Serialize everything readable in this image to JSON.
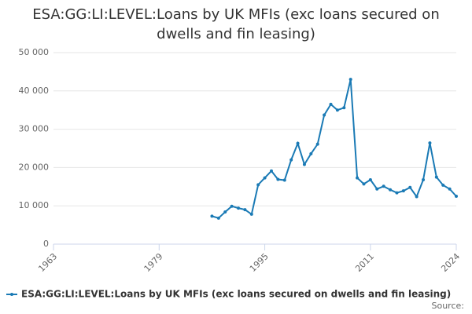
{
  "chart_data": {
    "type": "line",
    "title": "ESA:GG:LI:LEVEL:Loans by UK MFIs (exc loans secured on dwells and fin leasing)",
    "x": [
      1987,
      1988,
      1989,
      1990,
      1991,
      1992,
      1993,
      1994,
      1995,
      1996,
      1997,
      1998,
      1999,
      2000,
      2001,
      2002,
      2003,
      2004,
      2005,
      2006,
      2007,
      2008,
      2009,
      2010,
      2011,
      2012,
      2013,
      2014,
      2015,
      2016,
      2017,
      2018,
      2019,
      2020,
      2021,
      2022,
      2023,
      2024
    ],
    "series": [
      {
        "name": "ESA:GG:LI:LEVEL:Loans by UK MFIs (exc loans secured on dwells and fin leasing)",
        "color": "#1a7ab5",
        "values": [
          7300,
          6800,
          8400,
          9900,
          9400,
          9000,
          7800,
          15500,
          17300,
          19100,
          16900,
          16700,
          22000,
          26300,
          20800,
          23600,
          26100,
          33700,
          36500,
          35000,
          35600,
          43000,
          17300,
          15700,
          16800,
          14400,
          15100,
          14200,
          13400,
          13900,
          14800,
          12400,
          16800,
          26400,
          17500,
          15400,
          14400,
          12500
        ]
      }
    ],
    "xlim": [
      1963,
      2024
    ],
    "xticks": [
      1963,
      1979,
      1995,
      2011,
      2024
    ],
    "ylim": [
      0,
      50000
    ],
    "yticks": [
      0,
      {
        "value": 10000,
        "label": "10 000"
      },
      {
        "value": 20000,
        "label": "20 000"
      },
      {
        "value": 30000,
        "label": "30 000"
      },
      {
        "value": 40000,
        "label": "40 000"
      },
      {
        "value": 50000,
        "label": "50 000"
      }
    ],
    "grid": true,
    "source": "Source:"
  }
}
